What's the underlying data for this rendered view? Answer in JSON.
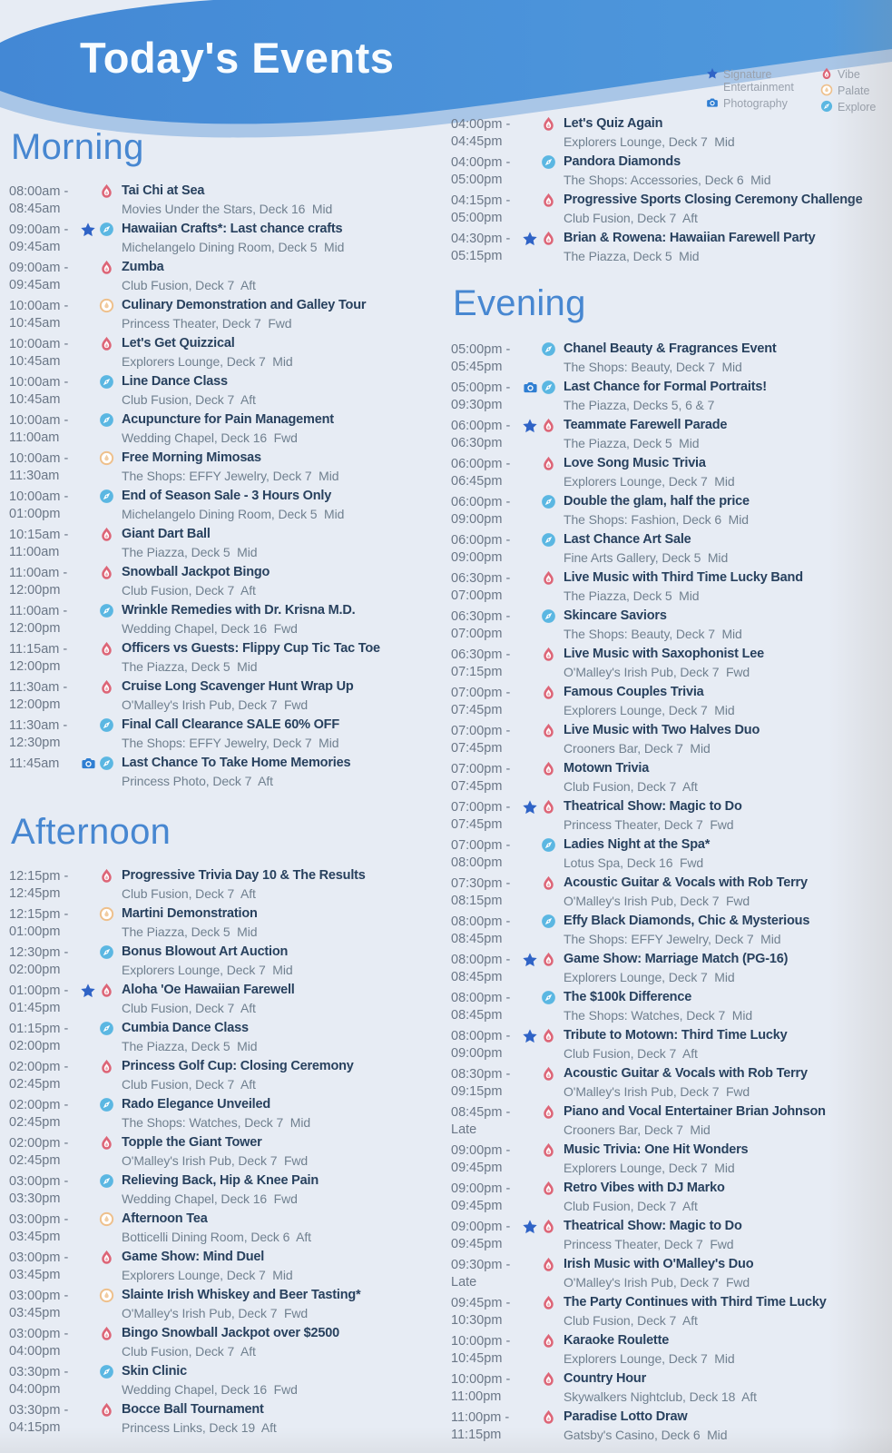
{
  "header": {
    "title": "Today's Events"
  },
  "legend": {
    "items": [
      {
        "icon": "star",
        "label": "Signature Entertainment"
      },
      {
        "icon": "vibe",
        "label": "Vibe"
      },
      {
        "icon": "camera",
        "label": "Photography"
      },
      {
        "icon": "palate",
        "label": "Palate"
      },
      {
        "icon": "explore",
        "label": "Explore"
      }
    ]
  },
  "colors": {
    "banner_blue": "#4a8ed8",
    "banner_light": "#a9c6e7",
    "heading_blue": "#4787d1",
    "title_navy": "#28415e",
    "star_blue": "#2f63c6",
    "vibe_pink": "#dd6577",
    "palate_orange": "#eec08c",
    "explore_blue": "#5bb7e2",
    "camera_blue": "#2f7ed2"
  },
  "sections": [
    {
      "id": "morning",
      "heading": "Morning",
      "events": [
        {
          "time": "08:00am -\n08:45am",
          "icons": [
            "vibe"
          ],
          "title": "Tai Chi at Sea",
          "location": "Movies Under the Stars, Deck 16  Mid"
        },
        {
          "time": "09:00am -\n09:45am",
          "icons": [
            "star",
            "explore"
          ],
          "title": "Hawaiian Crafts*: Last chance crafts",
          "location": "Michelangelo Dining Room, Deck 5  Mid"
        },
        {
          "time": "09:00am -\n09:45am",
          "icons": [
            "vibe"
          ],
          "title": "Zumba",
          "location": "Club Fusion, Deck 7  Aft"
        },
        {
          "time": "10:00am -\n10:45am",
          "icons": [
            "palate"
          ],
          "title": "Culinary Demonstration and Galley Tour",
          "location": "Princess Theater, Deck 7  Fwd"
        },
        {
          "time": "10:00am -\n10:45am",
          "icons": [
            "vibe"
          ],
          "title": "Let's Get Quizzical",
          "location": "Explorers Lounge, Deck 7  Mid"
        },
        {
          "time": "10:00am -\n10:45am",
          "icons": [
            "explore"
          ],
          "title": "Line Dance Class",
          "location": "Club Fusion, Deck 7  Aft"
        },
        {
          "time": "10:00am -\n11:00am",
          "icons": [
            "explore"
          ],
          "title": "Acupuncture for Pain Management",
          "location": "Wedding Chapel, Deck 16  Fwd"
        },
        {
          "time": "10:00am -\n11:30am",
          "icons": [
            "palate"
          ],
          "title": "Free Morning Mimosas",
          "location": "The Shops: EFFY Jewelry, Deck 7  Mid"
        },
        {
          "time": "10:00am -\n01:00pm",
          "icons": [
            "explore"
          ],
          "title": "End of Season Sale - 3 Hours Only",
          "location": "Michelangelo Dining Room, Deck 5  Mid"
        },
        {
          "time": "10:15am -\n11:00am",
          "icons": [
            "vibe"
          ],
          "title": "Giant Dart Ball",
          "location": "The Piazza, Deck 5  Mid"
        },
        {
          "time": "11:00am -\n12:00pm",
          "icons": [
            "vibe"
          ],
          "title": "Snowball Jackpot Bingo",
          "location": "Club Fusion, Deck 7  Aft"
        },
        {
          "time": "11:00am -\n12:00pm",
          "icons": [
            "explore"
          ],
          "title": "Wrinkle Remedies with Dr. Krisna M.D.",
          "location": "Wedding Chapel, Deck 16  Fwd"
        },
        {
          "time": "11:15am -\n12:00pm",
          "icons": [
            "vibe"
          ],
          "title": "Officers vs Guests: Flippy Cup Tic Tac Toe",
          "location": "The Piazza, Deck 5  Mid"
        },
        {
          "time": "11:30am -\n12:00pm",
          "icons": [
            "vibe"
          ],
          "title": "Cruise Long Scavenger Hunt Wrap Up",
          "location": "O'Malley's Irish Pub, Deck 7  Fwd"
        },
        {
          "time": "11:30am -\n12:30pm",
          "icons": [
            "explore"
          ],
          "title": "Final Call Clearance SALE 60% OFF",
          "location": "The Shops: EFFY Jewelry, Deck 7  Mid"
        },
        {
          "time": "11:45am",
          "icons": [
            "camera",
            "explore"
          ],
          "title": "Last Chance To Take Home Memories",
          "location": "Princess Photo, Deck 7  Aft"
        }
      ]
    },
    {
      "id": "afternoon",
      "heading": "Afternoon",
      "events": [
        {
          "time": "12:15pm -\n12:45pm",
          "icons": [
            "vibe"
          ],
          "title": "Progressive Trivia Day 10 & The Results",
          "location": "Club Fusion, Deck 7  Aft"
        },
        {
          "time": "12:15pm -\n01:00pm",
          "icons": [
            "palate"
          ],
          "title": "Martini Demonstration",
          "location": "The Piazza, Deck 5  Mid"
        },
        {
          "time": "12:30pm -\n02:00pm",
          "icons": [
            "explore"
          ],
          "title": "Bonus Blowout Art Auction",
          "location": "Explorers Lounge, Deck 7  Mid"
        },
        {
          "time": "01:00pm -\n01:45pm",
          "icons": [
            "star",
            "vibe"
          ],
          "title": "Aloha 'Oe Hawaiian Farewell",
          "location": "Club Fusion, Deck 7  Aft"
        },
        {
          "time": "01:15pm -\n02:00pm",
          "icons": [
            "explore"
          ],
          "title": "Cumbia Dance Class",
          "location": "The Piazza, Deck 5  Mid"
        },
        {
          "time": "02:00pm -\n02:45pm",
          "icons": [
            "vibe"
          ],
          "title": "Princess Golf Cup: Closing Ceremony",
          "location": "Club Fusion, Deck 7  Aft"
        },
        {
          "time": "02:00pm -\n02:45pm",
          "icons": [
            "explore"
          ],
          "title": "Rado Elegance Unveiled",
          "location": "The Shops: Watches, Deck 7  Mid"
        },
        {
          "time": "02:00pm -\n02:45pm",
          "icons": [
            "vibe"
          ],
          "title": "Topple the Giant Tower",
          "location": "O'Malley's Irish Pub, Deck 7  Fwd"
        },
        {
          "time": "03:00pm -\n03:30pm",
          "icons": [
            "explore"
          ],
          "title": "Relieving Back, Hip & Knee Pain",
          "location": "Wedding Chapel, Deck 16  Fwd"
        },
        {
          "time": "03:00pm -\n03:45pm",
          "icons": [
            "palate"
          ],
          "title": "Afternoon Tea",
          "location": "Botticelli Dining Room, Deck 6  Aft"
        },
        {
          "time": "03:00pm -\n03:45pm",
          "icons": [
            "vibe"
          ],
          "title": "Game Show: Mind Duel",
          "location": "Explorers Lounge, Deck 7  Mid"
        },
        {
          "time": "03:00pm -\n03:45pm",
          "icons": [
            "palate"
          ],
          "title": "Slainte Irish Whiskey and Beer Tasting*",
          "location": "O'Malley's Irish Pub, Deck 7  Fwd"
        },
        {
          "time": "03:00pm -\n04:00pm",
          "icons": [
            "vibe"
          ],
          "title": "Bingo Snowball Jackpot over $2500",
          "location": "Club Fusion, Deck 7  Aft"
        },
        {
          "time": "03:30pm -\n04:00pm",
          "icons": [
            "explore"
          ],
          "title": "Skin Clinic",
          "location": "Wedding Chapel, Deck 16  Fwd"
        },
        {
          "time": "03:30pm -\n04:15pm",
          "icons": [
            "vibe"
          ],
          "title": "Bocce Ball Tournament",
          "location": "Princess Links, Deck 19  Aft"
        }
      ]
    },
    {
      "id": "afternoon-continued",
      "heading": null,
      "events": [
        {
          "time": "04:00pm -\n04:45pm",
          "icons": [
            "vibe"
          ],
          "title": "Let's Quiz Again",
          "location": "Explorers Lounge, Deck 7  Mid"
        },
        {
          "time": "04:00pm -\n05:00pm",
          "icons": [
            "explore"
          ],
          "title": "Pandora Diamonds",
          "location": "The Shops: Accessories, Deck 6  Mid"
        },
        {
          "time": "04:15pm -\n05:00pm",
          "icons": [
            "vibe"
          ],
          "title": "Progressive Sports Closing Ceremony Challenge",
          "location": "Club Fusion, Deck 7  Aft"
        },
        {
          "time": "04:30pm -\n05:15pm",
          "icons": [
            "star",
            "vibe"
          ],
          "title": "Brian & Rowena: Hawaiian Farewell Party",
          "location": "The Piazza, Deck 5  Mid"
        }
      ]
    },
    {
      "id": "evening",
      "heading": "Evening",
      "events": [
        {
          "time": "05:00pm -\n05:45pm",
          "icons": [
            "explore"
          ],
          "title": "Chanel Beauty & Fragrances Event",
          "location": "The Shops: Beauty, Deck 7  Mid"
        },
        {
          "time": "05:00pm -\n09:30pm",
          "icons": [
            "camera",
            "explore"
          ],
          "title": "Last Chance for Formal Portraits!",
          "location": "The Piazza, Decks 5, 6 & 7"
        },
        {
          "time": "06:00pm -\n06:30pm",
          "icons": [
            "star",
            "vibe"
          ],
          "title": "Teammate Farewell Parade",
          "location": "The Piazza, Deck 5  Mid"
        },
        {
          "time": "06:00pm -\n06:45pm",
          "icons": [
            "vibe"
          ],
          "title": "Love Song Music Trivia",
          "location": "Explorers Lounge, Deck 7  Mid"
        },
        {
          "time": "06:00pm -\n09:00pm",
          "icons": [
            "explore"
          ],
          "title": "Double the glam, half the price",
          "location": "The Shops: Fashion, Deck 6  Mid"
        },
        {
          "time": "06:00pm -\n09:00pm",
          "icons": [
            "explore"
          ],
          "title": "Last Chance Art Sale",
          "location": "Fine Arts Gallery, Deck 5  Mid"
        },
        {
          "time": "06:30pm -\n07:00pm",
          "icons": [
            "vibe"
          ],
          "title": "Live Music with Third Time Lucky Band",
          "location": "The Piazza, Deck 5  Mid"
        },
        {
          "time": "06:30pm -\n07:00pm",
          "icons": [
            "explore"
          ],
          "title": "Skincare Saviors",
          "location": "The Shops: Beauty, Deck 7  Mid"
        },
        {
          "time": "06:30pm -\n07:15pm",
          "icons": [
            "vibe"
          ],
          "title": "Live Music with Saxophonist Lee",
          "location": "O'Malley's Irish Pub, Deck 7  Fwd"
        },
        {
          "time": "07:00pm -\n07:45pm",
          "icons": [
            "vibe"
          ],
          "title": "Famous Couples Trivia",
          "location": "Explorers Lounge, Deck 7  Mid"
        },
        {
          "time": "07:00pm -\n07:45pm",
          "icons": [
            "vibe"
          ],
          "title": "Live Music with Two Halves Duo",
          "location": "Crooners Bar, Deck 7  Mid"
        },
        {
          "time": "07:00pm -\n07:45pm",
          "icons": [
            "vibe"
          ],
          "title": "Motown Trivia",
          "location": "Club Fusion, Deck 7  Aft"
        },
        {
          "time": "07:00pm -\n07:45pm",
          "icons": [
            "star",
            "vibe"
          ],
          "title": "Theatrical Show: Magic to Do",
          "location": "Princess Theater, Deck 7  Fwd"
        },
        {
          "time": "07:00pm -\n08:00pm",
          "icons": [
            "explore"
          ],
          "title": "Ladies Night at the Spa*",
          "location": "Lotus Spa, Deck 16  Fwd"
        },
        {
          "time": "07:30pm -\n08:15pm",
          "icons": [
            "vibe"
          ],
          "title": "Acoustic Guitar & Vocals with Rob Terry",
          "location": "O'Malley's Irish Pub, Deck 7  Fwd"
        },
        {
          "time": "08:00pm -\n08:45pm",
          "icons": [
            "explore"
          ],
          "title": "Effy Black Diamonds, Chic & Mysterious",
          "location": "The Shops: EFFY Jewelry, Deck 7  Mid"
        },
        {
          "time": "08:00pm -\n08:45pm",
          "icons": [
            "star",
            "vibe"
          ],
          "title": "Game Show: Marriage Match (PG-16)",
          "location": "Explorers Lounge, Deck 7  Mid"
        },
        {
          "time": "08:00pm -\n08:45pm",
          "icons": [
            "explore"
          ],
          "title": "The $100k Difference",
          "location": "The Shops: Watches, Deck 7  Mid"
        },
        {
          "time": "08:00pm -\n09:00pm",
          "icons": [
            "star",
            "vibe"
          ],
          "title": "Tribute to Motown: Third Time Lucky",
          "location": "Club Fusion, Deck 7  Aft"
        },
        {
          "time": "08:30pm -\n09:15pm",
          "icons": [
            "vibe"
          ],
          "title": "Acoustic Guitar & Vocals with Rob Terry",
          "location": "O'Malley's Irish Pub, Deck 7  Fwd"
        },
        {
          "time": "08:45pm -\nLate",
          "icons": [
            "vibe"
          ],
          "title": "Piano and Vocal Entertainer Brian Johnson",
          "location": "Crooners Bar, Deck 7  Mid"
        },
        {
          "time": "09:00pm -\n09:45pm",
          "icons": [
            "vibe"
          ],
          "title": "Music Trivia: One Hit Wonders",
          "location": "Explorers Lounge, Deck 7  Mid"
        },
        {
          "time": "09:00pm -\n09:45pm",
          "icons": [
            "vibe"
          ],
          "title": "Retro Vibes with DJ Marko",
          "location": "Club Fusion, Deck 7  Aft"
        },
        {
          "time": "09:00pm -\n09:45pm",
          "icons": [
            "star",
            "vibe"
          ],
          "title": "Theatrical Show: Magic to Do",
          "location": "Princess Theater, Deck 7  Fwd"
        },
        {
          "time": "09:30pm -\nLate",
          "icons": [
            "vibe"
          ],
          "title": "Irish Music with O'Malley's Duo",
          "location": "O'Malley's Irish Pub, Deck 7  Fwd"
        },
        {
          "time": "09:45pm -\n10:30pm",
          "icons": [
            "vibe"
          ],
          "title": "The Party Continues with Third Time Lucky",
          "location": "Club Fusion, Deck 7  Aft"
        },
        {
          "time": "10:00pm -\n10:45pm",
          "icons": [
            "vibe"
          ],
          "title": "Karaoke Roulette",
          "location": "Explorers Lounge, Deck 7  Mid"
        },
        {
          "time": "10:00pm -\n11:00pm",
          "icons": [
            "vibe"
          ],
          "title": "Country Hour",
          "location": "Skywalkers Nightclub, Deck 18  Aft"
        },
        {
          "time": "11:00pm -\n11:15pm",
          "icons": [
            "vibe"
          ],
          "title": "Paradise Lotto Draw",
          "location": "Gatsby's Casino, Deck 6  Mid"
        }
      ]
    }
  ]
}
